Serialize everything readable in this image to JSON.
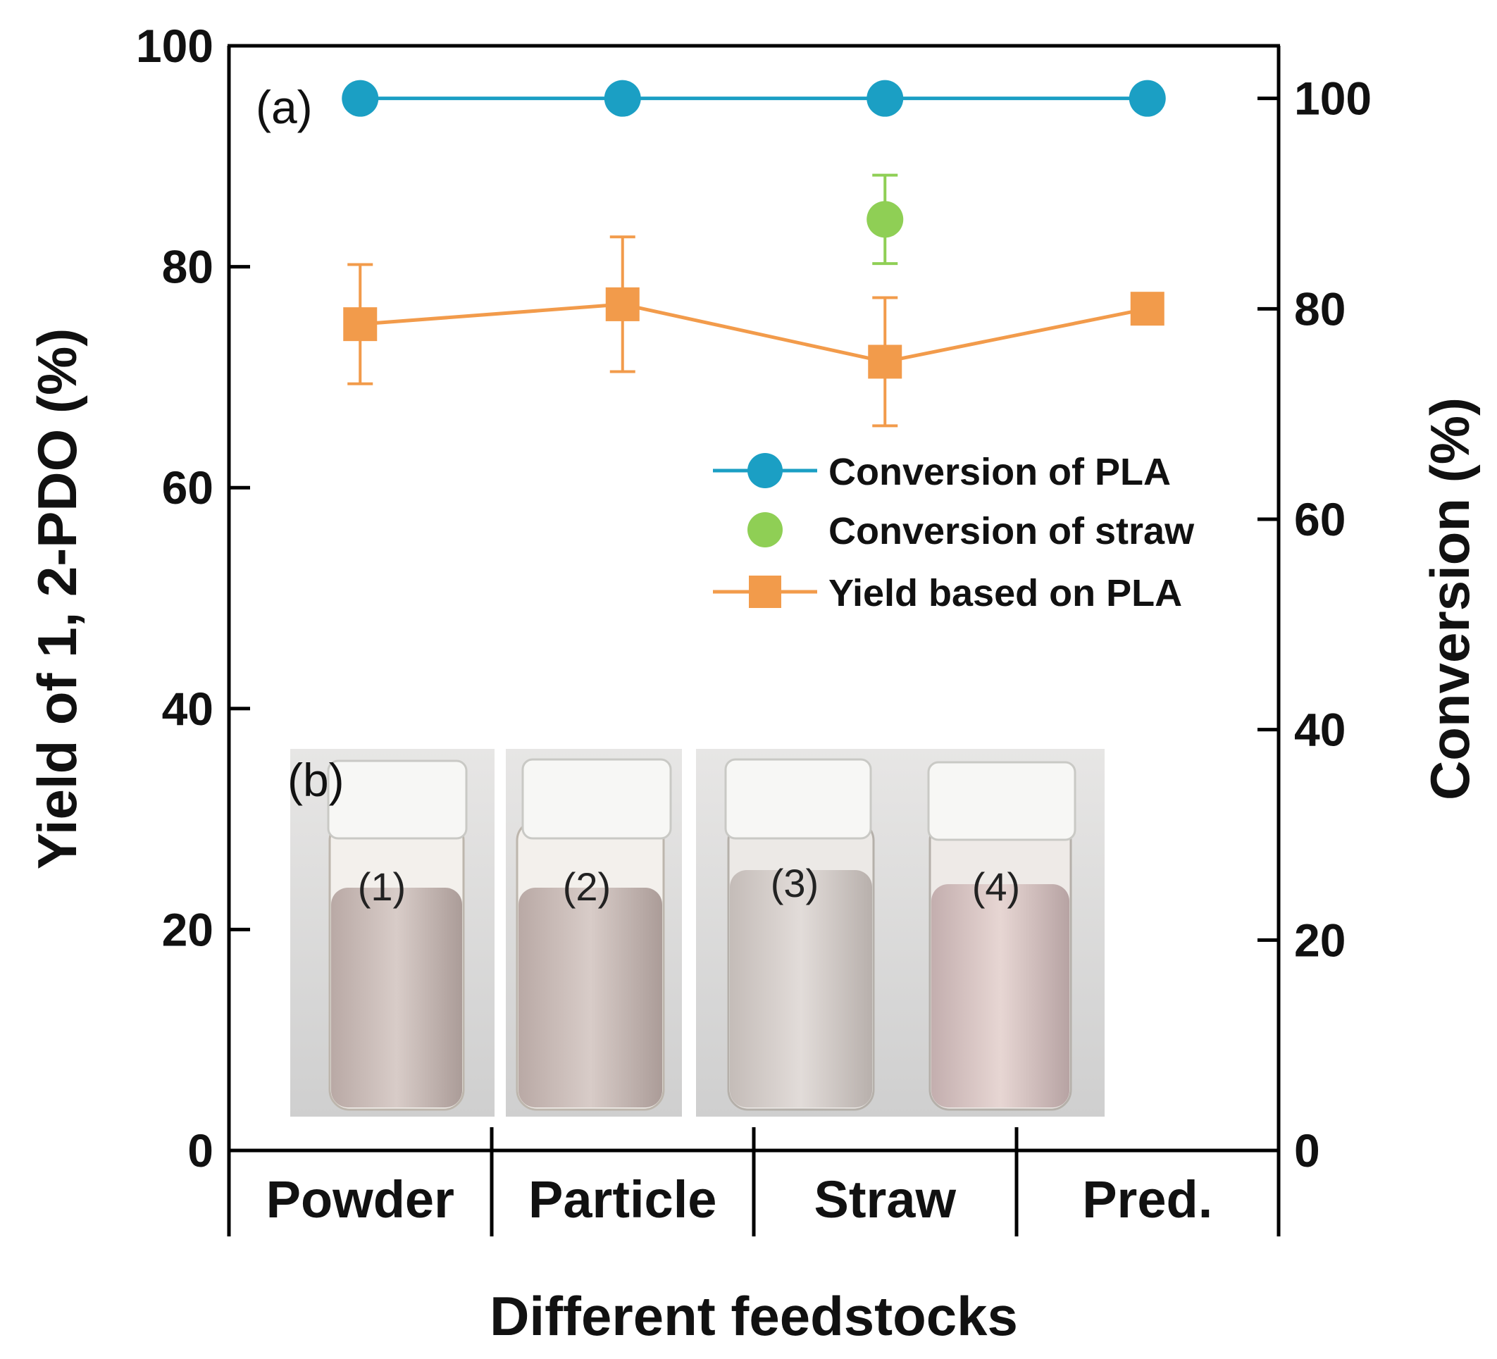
{
  "chart_data": {
    "type": "line",
    "panel_labels": {
      "main": "(a)",
      "inset": "(b)"
    },
    "categories": [
      "Powder",
      "Particle",
      "Straw",
      "Pred."
    ],
    "xlabel": "Different feedstocks",
    "ylabel": "Yield of 1, 2-PDO (%)",
    "y2label": "Conversion (%)",
    "ylim": [
      0,
      100
    ],
    "y2lim": [
      0,
      105
    ],
    "yticks": [
      "0",
      "20",
      "40",
      "60",
      "80",
      "100"
    ],
    "y2ticks": [
      "0",
      "20",
      "40",
      "60",
      "80",
      "100"
    ],
    "series": [
      {
        "name": "Conversion of PLA",
        "axis": "right",
        "marker": "circle",
        "line": true,
        "color": "#1b9fc4",
        "values": [
          100,
          100,
          100,
          100
        ]
      },
      {
        "name": "Conversion of straw",
        "axis": "right",
        "marker": "circle",
        "line": false,
        "color": "#8fcf55",
        "values": [
          null,
          null,
          88.5,
          null
        ],
        "errors": [
          null,
          null,
          4.2,
          null
        ]
      },
      {
        "name": "Yield based on PLA",
        "axis": "left",
        "marker": "square",
        "line": true,
        "color": "#f29b4b",
        "values": [
          74.8,
          76.6,
          71.4,
          76.2
        ],
        "errors": [
          5.4,
          6.1,
          5.8,
          null
        ]
      }
    ],
    "inset_vials": [
      "(1)",
      "(2)",
      "(3)",
      "(4)"
    ],
    "legend_position": "right-middle"
  }
}
